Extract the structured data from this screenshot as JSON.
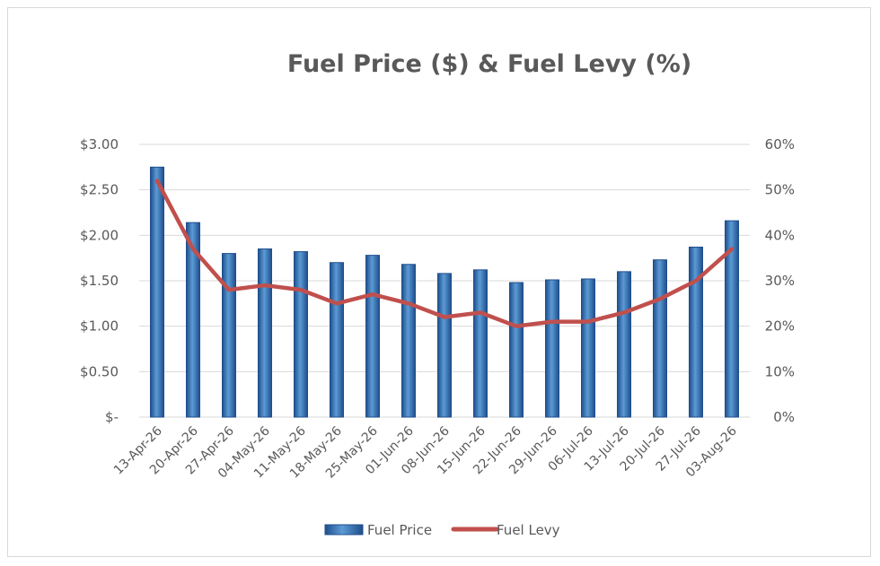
{
  "chart_data": {
    "type": "bar",
    "title": "Fuel Price ($) & Fuel Levy (%)",
    "categories": [
      "13-Apr-26",
      "20-Apr-26",
      "27-Apr-26",
      "04-May-26",
      "11-May-26",
      "18-May-26",
      "25-May-26",
      "01-Jun-26",
      "08-Jun-26",
      "15-Jun-26",
      "22-Jun-26",
      "29-Jun-26",
      "06-Jul-26",
      "13-Jul-26",
      "20-Jul-26",
      "27-Jul-26",
      "03-Aug-26"
    ],
    "series": [
      {
        "name": "Fuel Price",
        "type": "bar",
        "axis": "left",
        "color": "#2e6bb8",
        "values": [
          2.75,
          2.14,
          1.8,
          1.85,
          1.82,
          1.7,
          1.78,
          1.68,
          1.58,
          1.62,
          1.48,
          1.51,
          1.52,
          1.6,
          1.73,
          1.87,
          2.16
        ]
      },
      {
        "name": "Fuel Levy",
        "type": "line",
        "axis": "right",
        "color": "#c0504d",
        "values": [
          0.52,
          0.37,
          0.28,
          0.29,
          0.28,
          0.25,
          0.27,
          0.25,
          0.22,
          0.23,
          0.2,
          0.21,
          0.21,
          0.23,
          0.26,
          0.3,
          0.37
        ]
      }
    ],
    "y_left": {
      "ylim": [
        0,
        3
      ],
      "ticks": [
        0,
        0.5,
        1,
        1.5,
        2,
        2.5,
        3
      ],
      "tick_labels": [
        "$-",
        "$0.50",
        "$1.00",
        "$1.50",
        "$2.00",
        "$2.50",
        "$3.00"
      ]
    },
    "y_right": {
      "ylim": [
        0,
        0.6
      ],
      "ticks": [
        0,
        0.1,
        0.2,
        0.3,
        0.4,
        0.5,
        0.6
      ],
      "tick_labels": [
        "0%",
        "10%",
        "20%",
        "30%",
        "40%",
        "50%",
        "60%"
      ]
    },
    "grid": true,
    "legend": "bottom"
  }
}
